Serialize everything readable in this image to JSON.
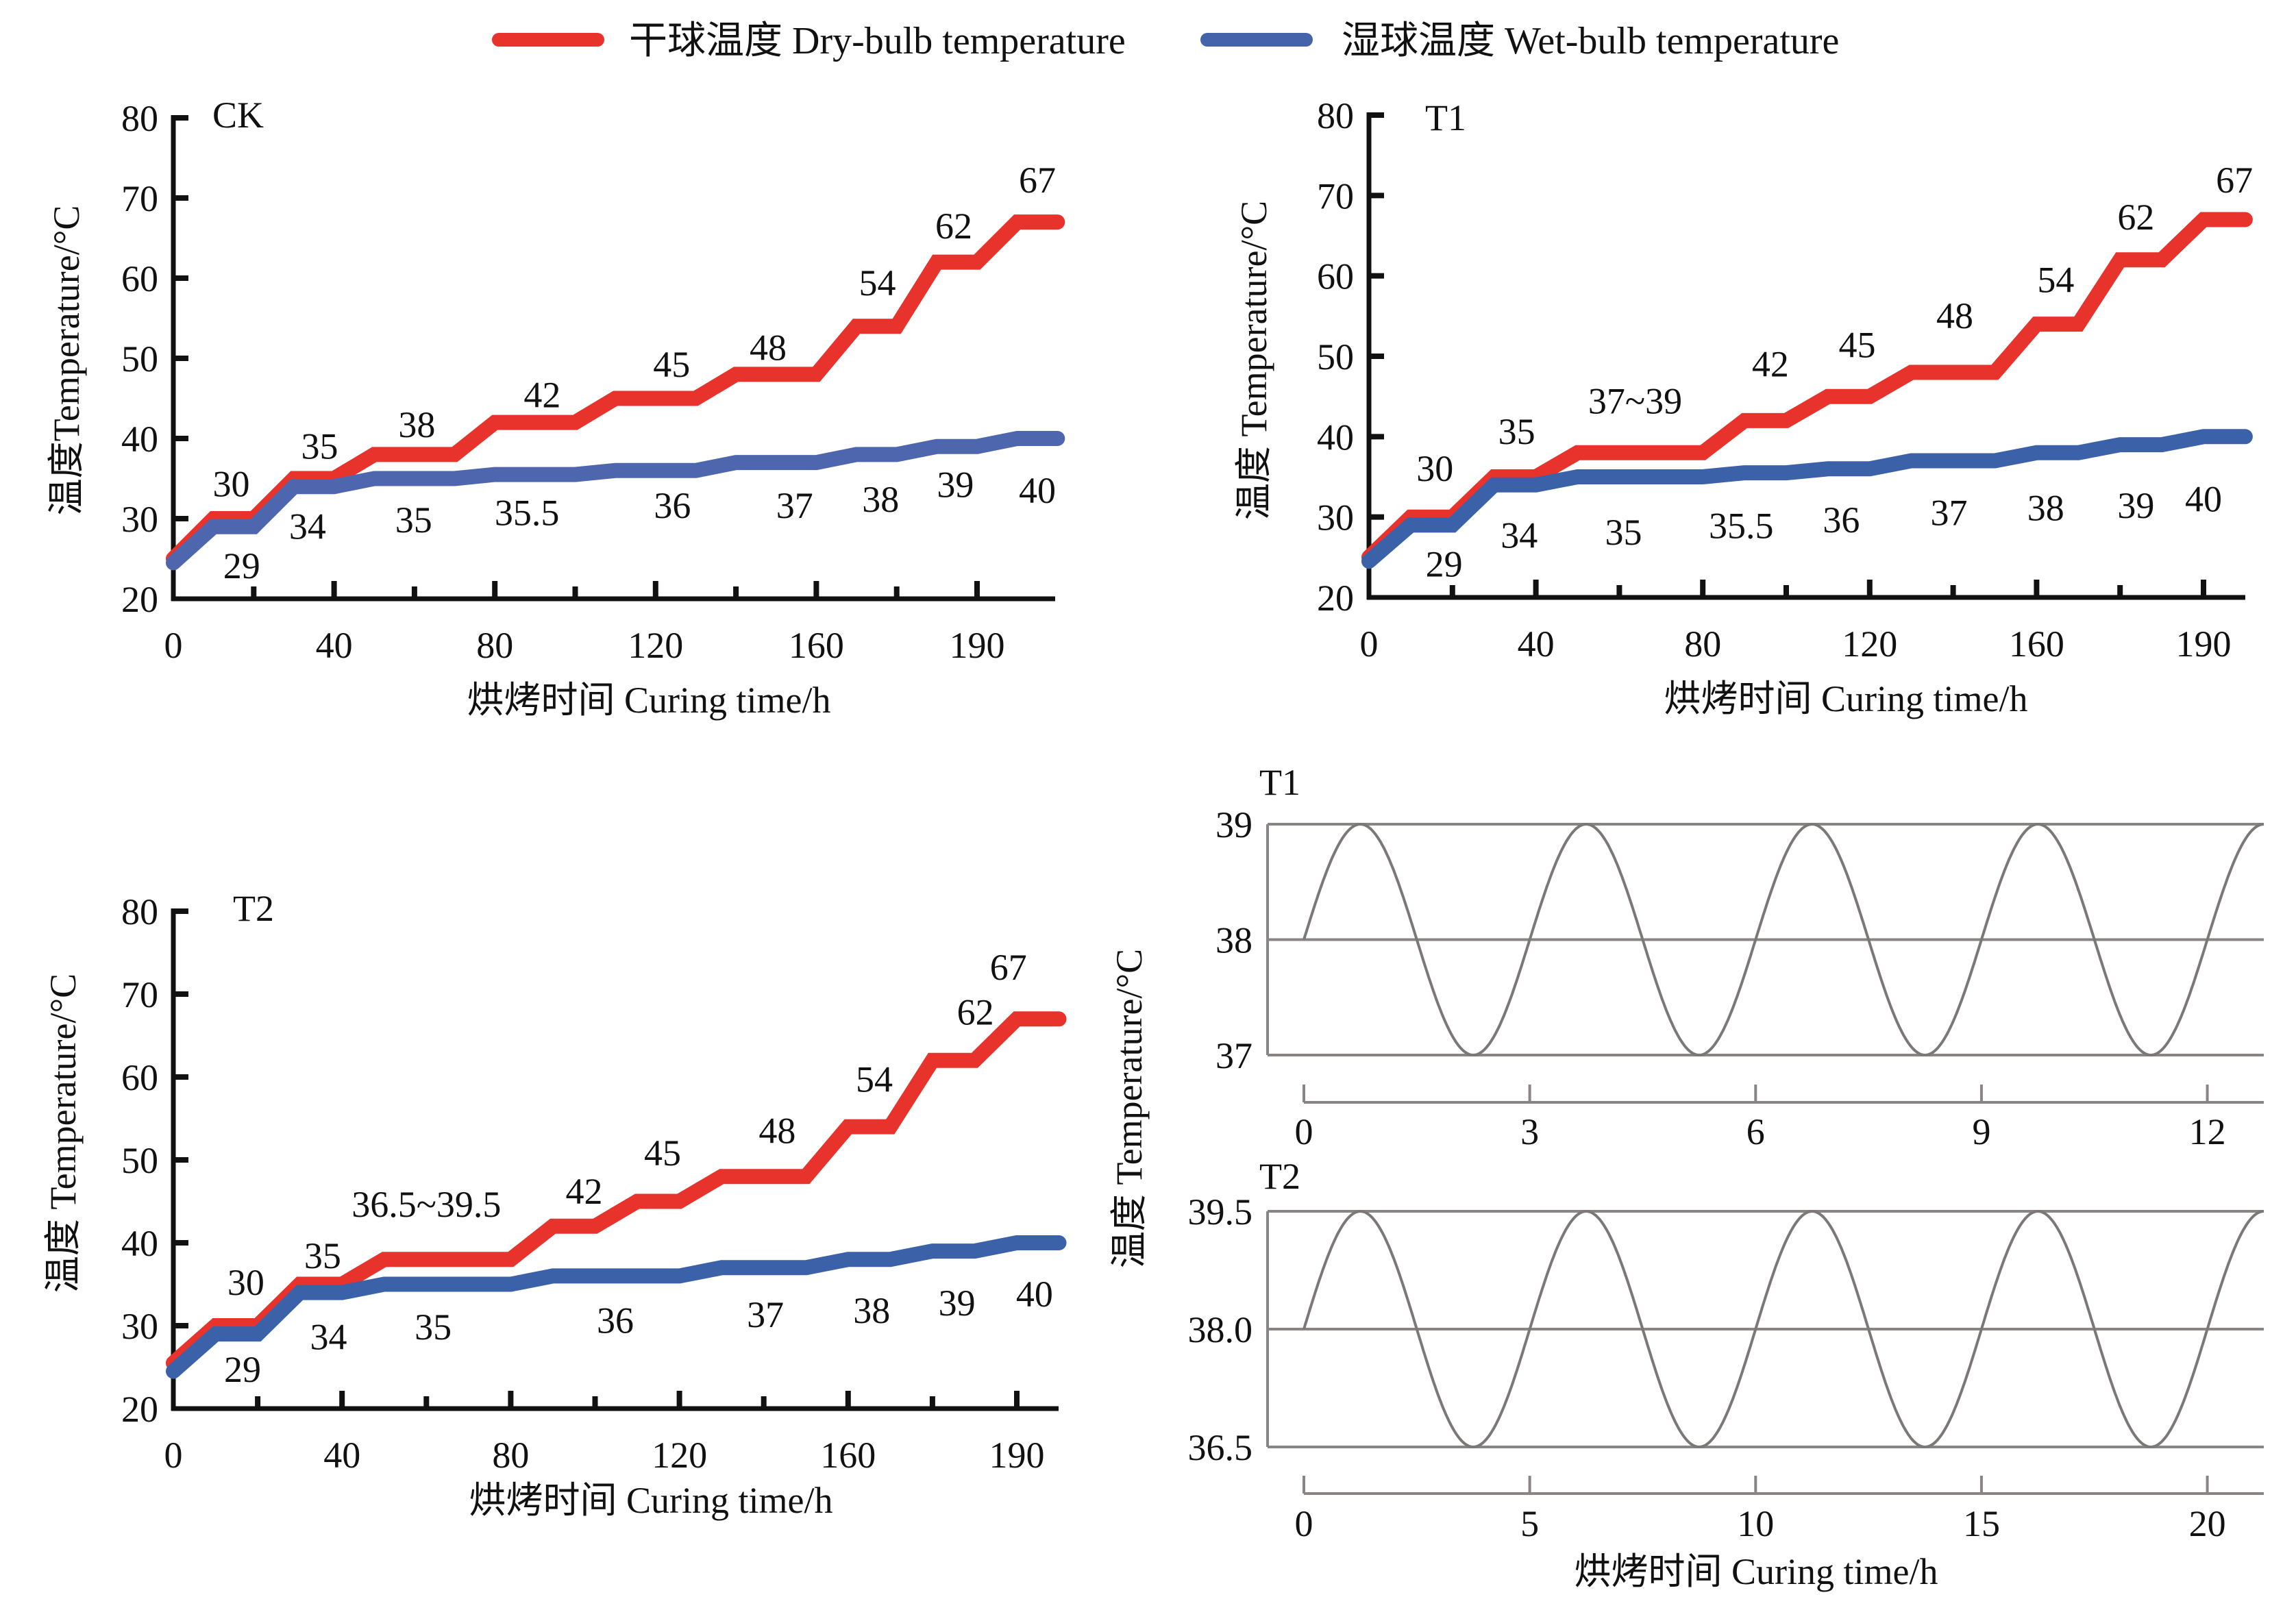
{
  "legend": {
    "items": [
      {
        "label": "干球温度 Dry-bulb temperature",
        "color": "#e8322c",
        "key": "dry"
      },
      {
        "label": "湿球温度 Wet-bulb temperature",
        "color": "#4563ab",
        "key": "wet"
      }
    ]
  },
  "chart_data": [
    {
      "id": "ck",
      "type": "line",
      "title": "CK",
      "xlabel": "烘烤时间 Curing time/h",
      "ylabel": "温度Temperature/°C",
      "ylim": [
        20,
        80
      ],
      "yticks": [
        20,
        30,
        40,
        50,
        60,
        70,
        80
      ],
      "x_unit": "tick interval index",
      "xlim": [
        0,
        11
      ],
      "x_tick_count": 11,
      "x_tick_labels": [
        {
          "at": 0,
          "text": "0"
        },
        {
          "at": 2,
          "text": "40"
        },
        {
          "at": 4,
          "text": "80"
        },
        {
          "at": 6,
          "text": "120"
        },
        {
          "at": 8,
          "text": "160"
        },
        {
          "at": 10,
          "text": "190"
        }
      ],
      "series": [
        {
          "name": "干球温度 Dry-bulb temperature",
          "key": "dry",
          "color": "#e8322c",
          "points": [
            [
              0,
              25
            ],
            [
              0.5,
              30
            ],
            [
              1,
              30
            ],
            [
              1.5,
              35
            ],
            [
              2,
              35
            ],
            [
              2.5,
              38
            ],
            [
              3.5,
              38
            ],
            [
              4,
              42
            ],
            [
              5,
              42
            ],
            [
              5.5,
              45
            ],
            [
              6.5,
              45
            ],
            [
              7,
              48
            ],
            [
              8,
              48
            ],
            [
              8.5,
              54
            ],
            [
              9,
              54
            ],
            [
              9.5,
              62
            ],
            [
              10,
              62
            ],
            [
              10.5,
              67
            ],
            [
              11,
              67
            ]
          ]
        },
        {
          "name": "湿球温度 Wet-bulb temperature",
          "key": "wet",
          "color": "#4e66ae",
          "points": [
            [
              0,
              24.5
            ],
            [
              0.5,
              29
            ],
            [
              1,
              29
            ],
            [
              1.5,
              34
            ],
            [
              2,
              34
            ],
            [
              2.5,
              35
            ],
            [
              3.5,
              35
            ],
            [
              4,
              35.5
            ],
            [
              5,
              35.5
            ],
            [
              5.5,
              36
            ],
            [
              6.5,
              36
            ],
            [
              7,
              37
            ],
            [
              8,
              37
            ],
            [
              8.5,
              38
            ],
            [
              9,
              38
            ],
            [
              9.5,
              39
            ],
            [
              10,
              39
            ],
            [
              10.5,
              40
            ],
            [
              11,
              40
            ]
          ]
        }
      ],
      "annotations": [
        {
          "text": "30",
          "x": 0.72,
          "y": 34.4
        },
        {
          "text": "35",
          "x": 1.82,
          "y": 39.1
        },
        {
          "text": "38",
          "x": 3.03,
          "y": 41.8
        },
        {
          "text": "42",
          "x": 4.59,
          "y": 45.5
        },
        {
          "text": "45",
          "x": 6.2,
          "y": 49.3
        },
        {
          "text": "48",
          "x": 7.4,
          "y": 51.4
        },
        {
          "text": "54",
          "x": 8.76,
          "y": 59.5
        },
        {
          "text": "62",
          "x": 9.71,
          "y": 66.6
        },
        {
          "text": "67",
          "x": 10.75,
          "y": 72.3
        },
        {
          "text": "29",
          "x": 0.85,
          "y": 24.2
        },
        {
          "text": "34",
          "x": 1.67,
          "y": 29.1
        },
        {
          "text": "35",
          "x": 2.99,
          "y": 29.9
        },
        {
          "text": "35.5",
          "x": 4.4,
          "y": 30.8
        },
        {
          "text": "36",
          "x": 6.21,
          "y": 31.7
        },
        {
          "text": "37",
          "x": 7.73,
          "y": 31.7
        },
        {
          "text": "38",
          "x": 8.8,
          "y": 32.5
        },
        {
          "text": "39",
          "x": 9.73,
          "y": 34.3
        },
        {
          "text": "40",
          "x": 10.75,
          "y": 33.6
        }
      ]
    },
    {
      "id": "t1",
      "type": "line",
      "title": "T1",
      "xlabel": "烘烤时间 Curing time/h",
      "ylabel": "温度 Temperature/°C",
      "ylim": [
        20,
        80
      ],
      "yticks": [
        20,
        30,
        40,
        50,
        60,
        70,
        80
      ],
      "x_unit": "tick interval index",
      "xlim": [
        0,
        10.5
      ],
      "x_tick_count": 10,
      "x_tick_labels": [
        {
          "at": 0,
          "text": "0"
        },
        {
          "at": 2,
          "text": "40"
        },
        {
          "at": 4,
          "text": "80"
        },
        {
          "at": 6,
          "text": "120"
        },
        {
          "at": 8,
          "text": "160"
        },
        {
          "at": 10,
          "text": "190"
        }
      ],
      "series": [
        {
          "name": "干球温度 Dry-bulb temperature",
          "key": "dry",
          "color": "#e8322c",
          "points": [
            [
              0,
              25
            ],
            [
              0.5,
              30
            ],
            [
              1,
              30
            ],
            [
              1.5,
              35
            ],
            [
              2,
              35
            ],
            [
              2.5,
              38
            ],
            [
              4,
              38
            ],
            [
              4.5,
              42
            ],
            [
              5,
              42
            ],
            [
              5.5,
              45
            ],
            [
              6,
              45
            ],
            [
              6.5,
              48
            ],
            [
              7.5,
              48
            ],
            [
              8,
              54
            ],
            [
              8.5,
              54
            ],
            [
              9,
              62
            ],
            [
              9.5,
              62
            ],
            [
              10,
              67
            ],
            [
              10.5,
              67
            ]
          ]
        },
        {
          "name": "湿球温度 Wet-bulb temperature",
          "key": "wet",
          "color": "#3b62a8",
          "points": [
            [
              0,
              24.5
            ],
            [
              0.5,
              29
            ],
            [
              1,
              29
            ],
            [
              1.5,
              34
            ],
            [
              2,
              34
            ],
            [
              2.5,
              35
            ],
            [
              4,
              35
            ],
            [
              4.5,
              35.5
            ],
            [
              5,
              35.5
            ],
            [
              5.5,
              36
            ],
            [
              6,
              36
            ],
            [
              6.5,
              37
            ],
            [
              7.5,
              37
            ],
            [
              8,
              38
            ],
            [
              8.5,
              38
            ],
            [
              9,
              39
            ],
            [
              9.5,
              39
            ],
            [
              10,
              40
            ],
            [
              10.5,
              40
            ]
          ]
        }
      ],
      "annotations": [
        {
          "text": "30",
          "x": 0.79,
          "y": 36.1
        },
        {
          "text": "35",
          "x": 1.77,
          "y": 40.7
        },
        {
          "text": "37~39",
          "x": 3.19,
          "y": 44.5
        },
        {
          "text": "42",
          "x": 4.81,
          "y": 49.1
        },
        {
          "text": "45",
          "x": 5.85,
          "y": 51.5
        },
        {
          "text": "48",
          "x": 7.02,
          "y": 55.1
        },
        {
          "text": "54",
          "x": 8.23,
          "y": 59.6
        },
        {
          "text": "62",
          "x": 9.19,
          "y": 67.4
        },
        {
          "text": "67",
          "x": 10.37,
          "y": 72.0
        },
        {
          "text": "29",
          "x": 0.9,
          "y": 24.2
        },
        {
          "text": "34",
          "x": 1.8,
          "y": 27.8
        },
        {
          "text": "35",
          "x": 3.05,
          "y": 28.2
        },
        {
          "text": "35.5",
          "x": 4.46,
          "y": 29.0
        },
        {
          "text": "36",
          "x": 5.66,
          "y": 29.7
        },
        {
          "text": "37",
          "x": 6.95,
          "y": 30.6
        },
        {
          "text": "38",
          "x": 8.11,
          "y": 31.2
        },
        {
          "text": "39",
          "x": 9.19,
          "y": 31.5
        },
        {
          "text": "40",
          "x": 10.0,
          "y": 32.3
        }
      ]
    },
    {
      "id": "t2",
      "type": "line",
      "title": "T2",
      "xlabel": "烘烤时间 Curing time/h",
      "ylabel": "温度 Temperature/°C",
      "ylim": [
        20,
        80
      ],
      "yticks": [
        20,
        30,
        40,
        50,
        60,
        70,
        80
      ],
      "x_unit": "tick interval index",
      "xlim": [
        0,
        10.5
      ],
      "x_tick_count": 10,
      "x_tick_labels": [
        {
          "at": 0,
          "text": "0"
        },
        {
          "at": 2,
          "text": "40"
        },
        {
          "at": 4,
          "text": "80"
        },
        {
          "at": 6,
          "text": "120"
        },
        {
          "at": 8,
          "text": "160"
        },
        {
          "at": 10,
          "text": "190"
        }
      ],
      "series": [
        {
          "name": "干球温度 Dry-bulb temperature",
          "key": "dry",
          "color": "#e8322c",
          "points": [
            [
              0,
              25.5
            ],
            [
              0.5,
              30
            ],
            [
              1,
              30
            ],
            [
              1.5,
              35
            ],
            [
              2,
              35
            ],
            [
              2.5,
              38
            ],
            [
              4,
              38
            ],
            [
              4.5,
              42
            ],
            [
              5,
              42
            ],
            [
              5.5,
              45
            ],
            [
              6,
              45
            ],
            [
              6.5,
              48
            ],
            [
              7.5,
              48
            ],
            [
              8,
              54
            ],
            [
              8.5,
              54
            ],
            [
              9,
              62
            ],
            [
              9.5,
              62
            ],
            [
              10,
              67
            ],
            [
              10.5,
              67
            ]
          ]
        },
        {
          "name": "湿球温度 Wet-bulb temperature",
          "key": "wet",
          "color": "#3b62a8",
          "points": [
            [
              0,
              24.5
            ],
            [
              0.5,
              29
            ],
            [
              1,
              29
            ],
            [
              1.5,
              34
            ],
            [
              2,
              34
            ],
            [
              2.5,
              35
            ],
            [
              4,
              35
            ],
            [
              4.5,
              36
            ],
            [
              6,
              36
            ],
            [
              6.5,
              37
            ],
            [
              7.5,
              37
            ],
            [
              8,
              38
            ],
            [
              8.5,
              38
            ],
            [
              9,
              39
            ],
            [
              9.5,
              39
            ],
            [
              10,
              40
            ],
            [
              10.5,
              40
            ]
          ]
        }
      ],
      "annotations": [
        {
          "text": "30",
          "x": 0.86,
          "y": 35.3
        },
        {
          "text": "35",
          "x": 1.77,
          "y": 38.5
        },
        {
          "text": "36.5~39.5",
          "x": 3.0,
          "y": 44.7
        },
        {
          "text": "42",
          "x": 4.87,
          "y": 46.3
        },
        {
          "text": "45",
          "x": 5.8,
          "y": 50.9
        },
        {
          "text": "48",
          "x": 7.16,
          "y": 53.6
        },
        {
          "text": "54",
          "x": 8.31,
          "y": 59.8
        },
        {
          "text": "62",
          "x": 9.51,
          "y": 67.9
        },
        {
          "text": "67",
          "x": 9.9,
          "y": 73.3
        },
        {
          "text": "29",
          "x": 0.82,
          "y": 24.8
        },
        {
          "text": "34",
          "x": 1.84,
          "y": 28.7
        },
        {
          "text": "35",
          "x": 3.08,
          "y": 29.9
        },
        {
          "text": "36",
          "x": 5.24,
          "y": 30.7
        },
        {
          "text": "37",
          "x": 7.02,
          "y": 31.4
        },
        {
          "text": "38",
          "x": 8.28,
          "y": 31.9
        },
        {
          "text": "39",
          "x": 9.29,
          "y": 32.8
        },
        {
          "text": "40",
          "x": 10.21,
          "y": 33.9
        }
      ]
    },
    {
      "id": "sine-t1",
      "type": "line",
      "title": "T1",
      "xlabel": "",
      "ylabel": "温度 Temperature/°C",
      "ylim": [
        37,
        39
      ],
      "yticks": [
        {
          "v": 37,
          "text": "37"
        },
        {
          "v": 38,
          "text": "38"
        },
        {
          "v": 39,
          "text": "39"
        }
      ],
      "xlim": [
        0,
        12.75
      ],
      "xticks": [
        0,
        3,
        6,
        9,
        12
      ],
      "function": {
        "kind": "sine",
        "mean": 38,
        "amplitude": 1,
        "period_h": 3,
        "start_h": 0,
        "end_h": 12.75
      }
    },
    {
      "id": "sine-t2",
      "type": "line",
      "title": "T2",
      "xlabel": "烘烤时间 Curing time/h",
      "ylabel": "温度 Temperature/°C",
      "ylim": [
        36.5,
        39.5
      ],
      "yticks": [
        {
          "v": 36.5,
          "text": "36.5"
        },
        {
          "v": 38.0,
          "text": "38.0"
        },
        {
          "v": 39.5,
          "text": "39.5"
        }
      ],
      "xlim": [
        0,
        21.25
      ],
      "xticks": [
        0,
        5,
        10,
        15,
        20
      ],
      "function": {
        "kind": "sine",
        "mean": 38,
        "amplitude": 1.5,
        "period_h": 5,
        "start_h": 0,
        "end_h": 21.25
      }
    }
  ]
}
